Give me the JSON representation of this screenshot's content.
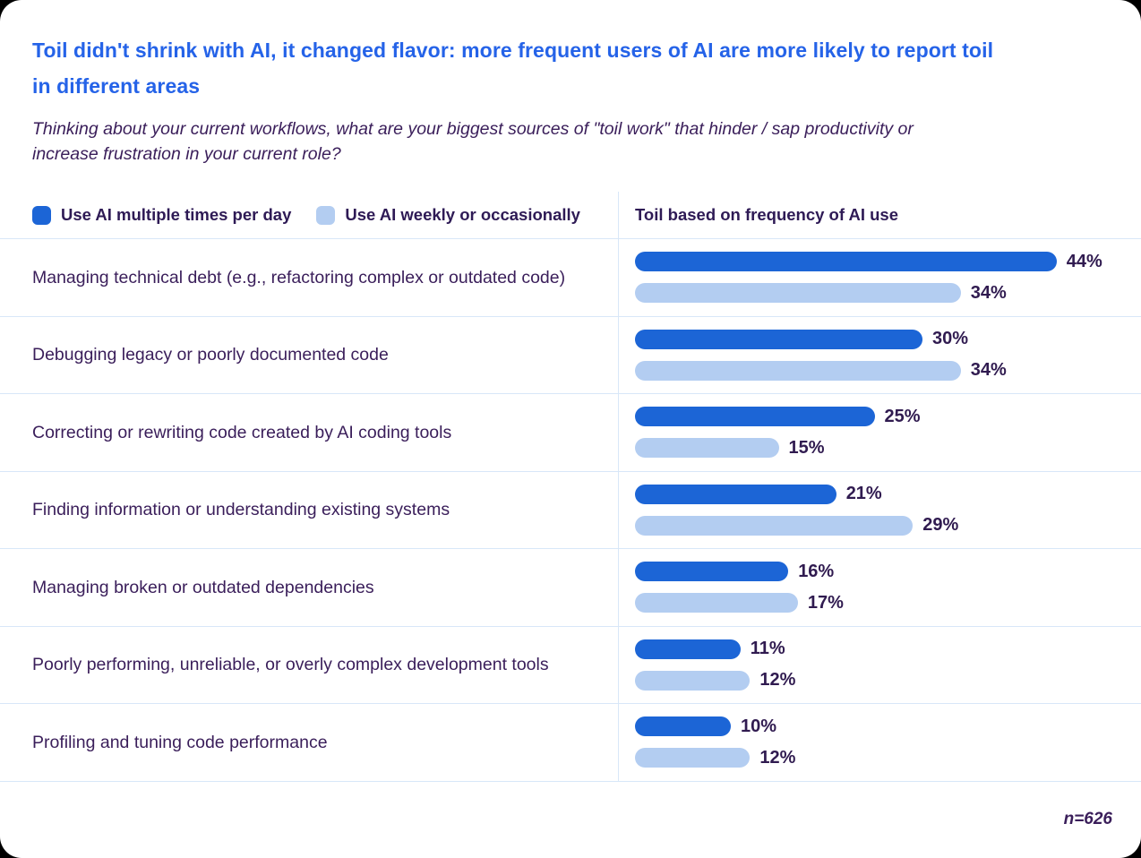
{
  "card": {
    "title": "Toil didn't shrink with AI, it changed flavor: more frequent users of AI are more likely to report toil in different areas",
    "subtitle": "Thinking about your current workflows, what are your biggest sources of \"toil work\" that hinder / sap productivity or increase frustration in your current role?",
    "sample_note": "n=626"
  },
  "legend": {
    "items": [
      {
        "label": "Use AI multiple times per day",
        "color": "#1C65D6"
      },
      {
        "label": "Use AI weekly or occasionally",
        "color": "#B3CDF1"
      }
    ]
  },
  "chart_header": "Toil based on frequency of AI use",
  "colors": {
    "title_blue": "#2563E8",
    "body_purple": "#3A1E5A",
    "value_label": "#301B50",
    "divider": "#D8E7F8",
    "bar_dark": "#1C65D6",
    "bar_light": "#B3CDF1",
    "card_bg": "#FFFFFF"
  },
  "chart_data": {
    "type": "bar",
    "orientation": "horizontal",
    "title": "Toil based on frequency of AI use",
    "value_suffix": "%",
    "xlim": [
      0,
      47
    ],
    "grid": false,
    "legend_position": "top-left",
    "categories": [
      "Managing technical debt (e.g., refactoring complex or outdated code)",
      "Debugging legacy or poorly documented code",
      "Correcting or rewriting code created by AI coding tools",
      "Finding information or understanding existing systems",
      "Managing broken or outdated dependencies",
      "Poorly performing, unreliable, or overly complex development tools",
      "Profiling and tuning code performance"
    ],
    "series": [
      {
        "name": "Use AI multiple times per day",
        "color": "#1C65D6",
        "values": [
          44,
          30,
          25,
          21,
          16,
          11,
          10
        ]
      },
      {
        "name": "Use AI weekly or occasionally",
        "color": "#B3CDF1",
        "values": [
          34,
          34,
          15,
          29,
          17,
          12,
          12
        ]
      }
    ],
    "sample_size": "n=626"
  }
}
